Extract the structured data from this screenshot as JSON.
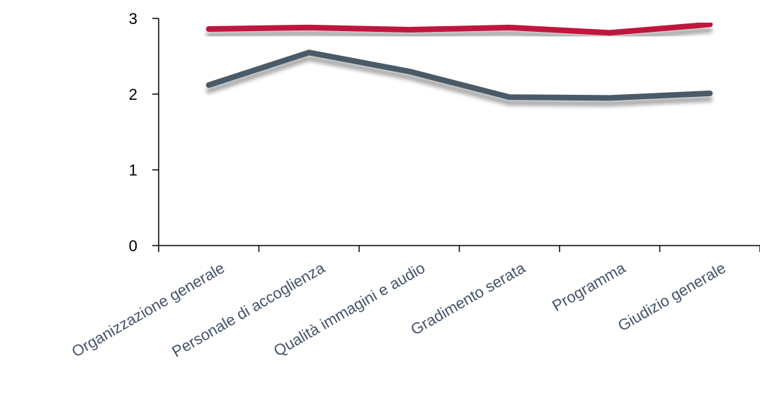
{
  "chart_data": {
    "type": "line",
    "categories": [
      "Organizzazione generale",
      "Personale di accoglienza",
      "Qualità immagini e audio",
      "Gradimento serata",
      "Programma",
      "Giudizio generale"
    ],
    "series": [
      {
        "color": "#c0143c",
        "values": [
          2.86,
          2.88,
          2.85,
          2.88,
          2.81,
          2.92
        ]
      },
      {
        "color": "#4a5a68",
        "values": [
          2.12,
          2.55,
          2.3,
          1.96,
          1.95,
          2.01
        ]
      }
    ],
    "yticks": [
      "0",
      "1",
      "2",
      "3"
    ],
    "ylim": [
      0,
      3
    ],
    "xlabel": "",
    "ylabel": "",
    "grid": false,
    "legend": "none"
  }
}
